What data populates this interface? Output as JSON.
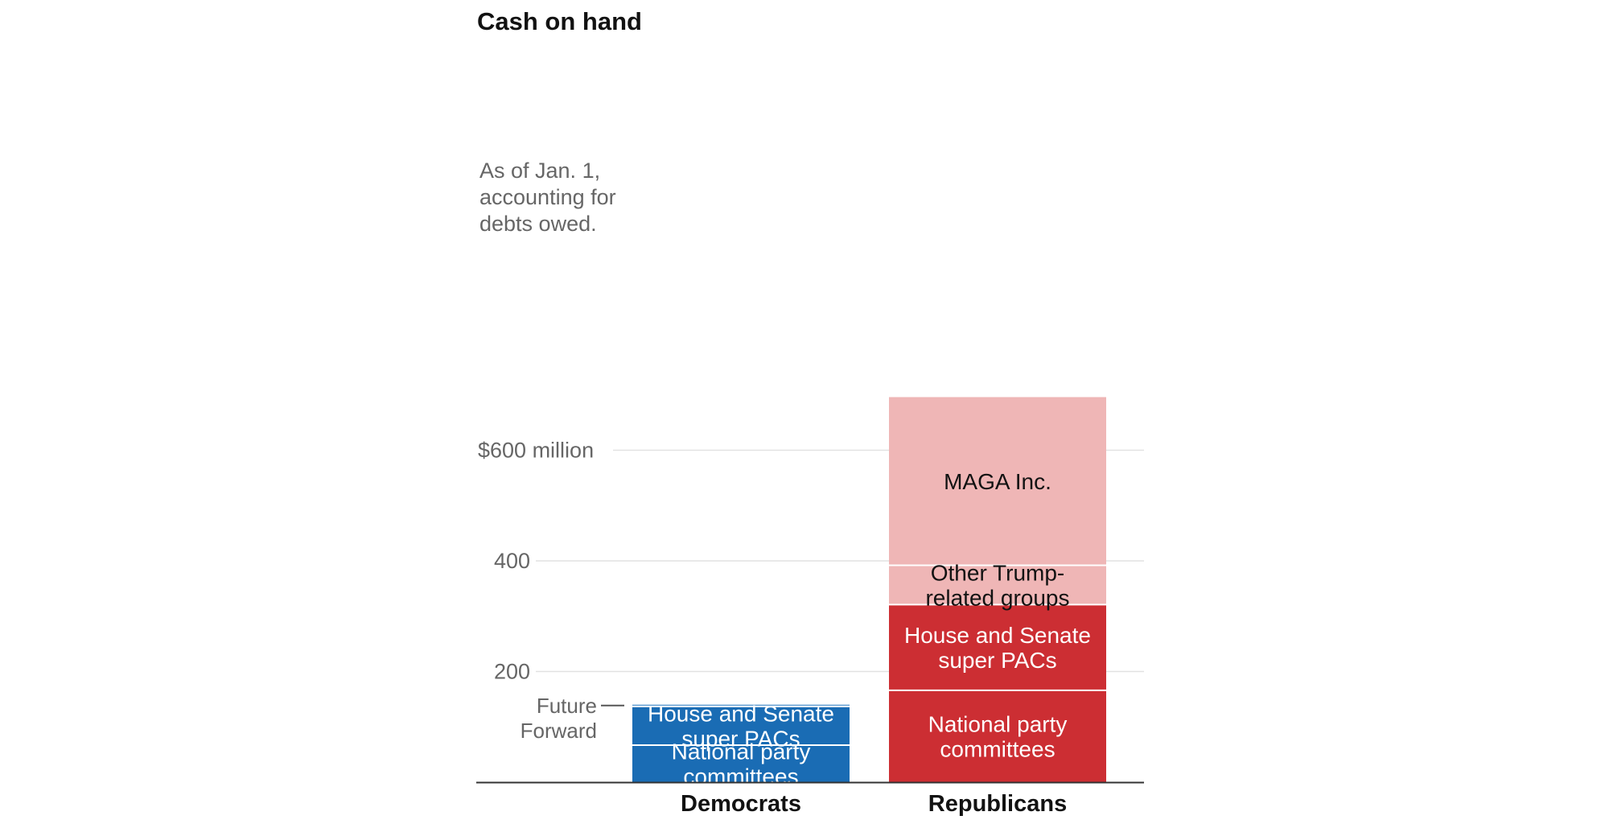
{
  "chart_data": {
    "type": "bar",
    "stacked": true,
    "title": "Cash on hand",
    "note": [
      "As of Jan. 1,",
      "accounting for",
      "debts owed."
    ],
    "ylim": [
      0,
      700
    ],
    "yticks": [
      {
        "value": 200,
        "label": "200"
      },
      {
        "value": 400,
        "label": "400"
      },
      {
        "value": 600,
        "label": "$600 million"
      }
    ],
    "categories": [
      "Democrats",
      "Republicans"
    ],
    "series": [
      {
        "category": "Democrats",
        "segments": [
          {
            "name": "National party committees",
            "lines": [
              "National party",
              "committees"
            ],
            "value": 67,
            "color": "#1a6cb4",
            "text_color": "#ffffff"
          },
          {
            "name": "House and Senate super PACs",
            "lines": [
              "House and Senate",
              "super PACs"
            ],
            "value": 70,
            "color": "#1a6cb4",
            "text_color": "#ffffff"
          },
          {
            "name": "Future Forward",
            "lines": [
              "Future",
              "Forward"
            ],
            "value": 3,
            "color": "#3f88c8",
            "text_color": "#666666",
            "external_label": true
          }
        ]
      },
      {
        "category": "Republicans",
        "segments": [
          {
            "name": "National party committees",
            "lines": [
              "National party",
              "committees"
            ],
            "value": 166,
            "color": "#cc2e33",
            "text_color": "#ffffff"
          },
          {
            "name": "House and Senate super PACs",
            "lines": [
              "House and Senate",
              "super PACs"
            ],
            "value": 155,
            "color": "#cc2e33",
            "text_color": "#ffffff"
          },
          {
            "name": "Other Trump-related groups",
            "lines": [
              "Other Trump-",
              "related groups"
            ],
            "value": 71,
            "color": "#efb6b6",
            "text_color": "#121212"
          },
          {
            "name": "MAGA Inc.",
            "lines": [
              "MAGA Inc."
            ],
            "value": 304,
            "color": "#efb6b6",
            "text_color": "#121212"
          }
        ]
      }
    ]
  }
}
